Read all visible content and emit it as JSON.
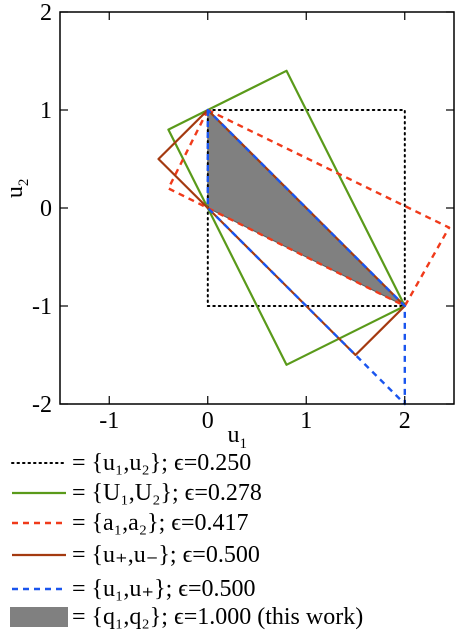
{
  "chart_data": {
    "type": "line",
    "xlabel": "u1",
    "xlabel_sub": "1",
    "xlabel_base": "u",
    "ylabel_base": "u",
    "ylabel_sub": "2",
    "xlim": [
      -1.5,
      2.5
    ],
    "ylim": [
      -2,
      2
    ],
    "x_ticks": [
      {
        "value": -1,
        "label": "-1"
      },
      {
        "value": 0,
        "label": "0"
      },
      {
        "value": 1,
        "label": "1"
      },
      {
        "value": 2,
        "label": "2"
      }
    ],
    "y_ticks": [
      {
        "value": 2,
        "label": "2"
      },
      {
        "value": 1,
        "label": "1"
      },
      {
        "value": 0,
        "label": "0"
      },
      {
        "value": -1,
        "label": "-1"
      },
      {
        "value": -2,
        "label": "-2"
      }
    ],
    "grid": false,
    "legend_position": "bottom",
    "series": [
      {
        "key": "u1u2",
        "kind": "polygon",
        "color": "#000000",
        "style": "dotted",
        "points": [
          [
            0,
            1
          ],
          [
            2,
            1
          ],
          [
            2,
            -1
          ],
          [
            0,
            -1
          ]
        ],
        "legend_text": "= {u₁,u₂}; ϵ=0.250"
      },
      {
        "key": "U1U2",
        "kind": "polygon",
        "color": "#5a9a1a",
        "style": "solid",
        "points": [
          [
            -0.4,
            0.8
          ],
          [
            0.8,
            1.4
          ],
          [
            2,
            -1
          ],
          [
            0.8,
            -1.6
          ]
        ],
        "legend_text": "= {U₁,U₂}; ϵ=0.278"
      },
      {
        "key": "a1a2",
        "kind": "polygon",
        "color": "#f03a1a",
        "style": "dashed",
        "points": [
          [
            0,
            1
          ],
          [
            2.45,
            -0.2
          ],
          [
            2,
            -1
          ],
          [
            -0.4,
            0.2
          ]
        ],
        "legend_text": "= {a₁,a₂}; ϵ=0.417"
      },
      {
        "key": "upum",
        "kind": "polygon",
        "color": "#a43a10",
        "style": "solid",
        "points": [
          [
            0,
            1
          ],
          [
            -0.5,
            0.5
          ],
          [
            0,
            0
          ],
          [
            1.5,
            -1.5
          ],
          [
            2,
            -1
          ]
        ],
        "legend_text": "= {u₊,u₋}; ϵ=0.500"
      },
      {
        "key": "u1up",
        "kind": "polygon",
        "color": "#1a55ee",
        "style": "dashed",
        "points": [
          [
            0,
            1
          ],
          [
            0,
            0
          ],
          [
            2,
            -2
          ],
          [
            2,
            -1
          ]
        ],
        "legend_text": "= {u₁,u₊}; ϵ=0.500"
      },
      {
        "key": "q1q2",
        "kind": "filled",
        "color": "#808080",
        "style": "fill",
        "points": [
          [
            0,
            1
          ],
          [
            2,
            -1
          ],
          [
            0,
            0
          ]
        ],
        "legend_text": "= {q₁,q₂}; ϵ=1.000 (this work)"
      }
    ]
  }
}
